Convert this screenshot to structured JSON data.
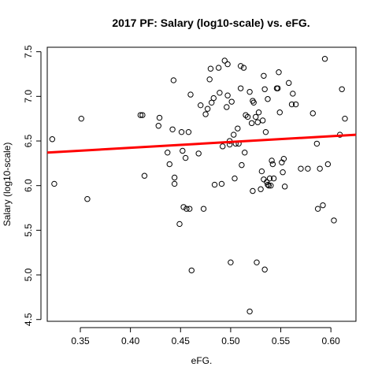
{
  "chart_data": {
    "type": "scatter",
    "title": "2017 PF: Salary (log10-scale) vs. eFG.",
    "xlabel": "eFG.",
    "ylabel": "Salary (log10-scale)",
    "xlim": [
      0.317,
      0.625
    ],
    "ylim": [
      4.48,
      7.55
    ],
    "x_ticks": [
      0.35,
      0.4,
      0.45,
      0.5,
      0.55,
      0.6
    ],
    "y_ticks": [
      4.5,
      5.0,
      5.5,
      6.0,
      6.5,
      7.0,
      7.5
    ],
    "x_tick_labels": [
      "0.35",
      "0.40",
      "0.45",
      "0.50",
      "0.55",
      "0.60"
    ],
    "y_tick_labels": [
      "4.5",
      "5.0",
      "5.5",
      "6.0",
      "6.5",
      "7.0",
      "7.5"
    ],
    "grid": false,
    "point_color": "#000000",
    "fit_line": {
      "x": [
        0.317,
        0.625
      ],
      "y": [
        6.37,
        6.57
      ],
      "color": "#ff0000"
    },
    "points": [
      {
        "x": 0.322,
        "y": 6.52
      },
      {
        "x": 0.324,
        "y": 6.02
      },
      {
        "x": 0.351,
        "y": 6.75
      },
      {
        "x": 0.357,
        "y": 5.85
      },
      {
        "x": 0.41,
        "y": 6.79
      },
      {
        "x": 0.412,
        "y": 6.79
      },
      {
        "x": 0.414,
        "y": 6.11
      },
      {
        "x": 0.428,
        "y": 6.67
      },
      {
        "x": 0.429,
        "y": 6.76
      },
      {
        "x": 0.437,
        "y": 6.37
      },
      {
        "x": 0.439,
        "y": 6.24
      },
      {
        "x": 0.442,
        "y": 6.63
      },
      {
        "x": 0.443,
        "y": 7.18
      },
      {
        "x": 0.444,
        "y": 6.09
      },
      {
        "x": 0.444,
        "y": 6.02
      },
      {
        "x": 0.449,
        "y": 5.57
      },
      {
        "x": 0.451,
        "y": 6.6
      },
      {
        "x": 0.452,
        "y": 6.39
      },
      {
        "x": 0.453,
        "y": 5.76
      },
      {
        "x": 0.455,
        "y": 6.31
      },
      {
        "x": 0.456,
        "y": 5.74
      },
      {
        "x": 0.458,
        "y": 6.6
      },
      {
        "x": 0.459,
        "y": 5.74
      },
      {
        "x": 0.46,
        "y": 7.02
      },
      {
        "x": 0.461,
        "y": 5.05
      },
      {
        "x": 0.468,
        "y": 6.36
      },
      {
        "x": 0.47,
        "y": 6.9
      },
      {
        "x": 0.473,
        "y": 5.74
      },
      {
        "x": 0.475,
        "y": 6.8
      },
      {
        "x": 0.477,
        "y": 6.86
      },
      {
        "x": 0.479,
        "y": 7.19
      },
      {
        "x": 0.48,
        "y": 7.31
      },
      {
        "x": 0.481,
        "y": 6.93
      },
      {
        "x": 0.483,
        "y": 6.98
      },
      {
        "x": 0.484,
        "y": 6.01
      },
      {
        "x": 0.488,
        "y": 7.32
      },
      {
        "x": 0.489,
        "y": 7.04
      },
      {
        "x": 0.491,
        "y": 6.02
      },
      {
        "x": 0.492,
        "y": 6.44
      },
      {
        "x": 0.494,
        "y": 7.4
      },
      {
        "x": 0.496,
        "y": 6.88
      },
      {
        "x": 0.497,
        "y": 7.01
      },
      {
        "x": 0.497,
        "y": 7.36
      },
      {
        "x": 0.499,
        "y": 6.5
      },
      {
        "x": 0.499,
        "y": 6.46
      },
      {
        "x": 0.5,
        "y": 5.14
      },
      {
        "x": 0.501,
        "y": 6.94
      },
      {
        "x": 0.503,
        "y": 6.57
      },
      {
        "x": 0.504,
        "y": 6.08
      },
      {
        "x": 0.505,
        "y": 6.47
      },
      {
        "x": 0.507,
        "y": 6.64
      },
      {
        "x": 0.508,
        "y": 6.47
      },
      {
        "x": 0.51,
        "y": 7.09
      },
      {
        "x": 0.51,
        "y": 7.34
      },
      {
        "x": 0.511,
        "y": 6.23
      },
      {
        "x": 0.513,
        "y": 7.32
      },
      {
        "x": 0.514,
        "y": 6.37
      },
      {
        "x": 0.515,
        "y": 6.79
      },
      {
        "x": 0.517,
        "y": 6.77
      },
      {
        "x": 0.519,
        "y": 7.05
      },
      {
        "x": 0.519,
        "y": 4.59
      },
      {
        "x": 0.521,
        "y": 6.7
      },
      {
        "x": 0.522,
        "y": 6.95
      },
      {
        "x": 0.522,
        "y": 5.94
      },
      {
        "x": 0.523,
        "y": 6.93
      },
      {
        "x": 0.525,
        "y": 6.77
      },
      {
        "x": 0.526,
        "y": 5.14
      },
      {
        "x": 0.527,
        "y": 6.71
      },
      {
        "x": 0.528,
        "y": 6.82
      },
      {
        "x": 0.53,
        "y": 5.96
      },
      {
        "x": 0.531,
        "y": 6.16
      },
      {
        "x": 0.532,
        "y": 6.73
      },
      {
        "x": 0.533,
        "y": 7.23
      },
      {
        "x": 0.533,
        "y": 6.07
      },
      {
        "x": 0.534,
        "y": 7.08
      },
      {
        "x": 0.534,
        "y": 5.06
      },
      {
        "x": 0.535,
        "y": 6.6
      },
      {
        "x": 0.536,
        "y": 6.04
      },
      {
        "x": 0.537,
        "y": 6.97
      },
      {
        "x": 0.537,
        "y": 6.01
      },
      {
        "x": 0.538,
        "y": 6.0
      },
      {
        "x": 0.539,
        "y": 6.08
      },
      {
        "x": 0.54,
        "y": 6.0
      },
      {
        "x": 0.541,
        "y": 6.28
      },
      {
        "x": 0.542,
        "y": 6.24
      },
      {
        "x": 0.543,
        "y": 6.08
      },
      {
        "x": 0.546,
        "y": 7.09
      },
      {
        "x": 0.547,
        "y": 7.09
      },
      {
        "x": 0.548,
        "y": 7.27
      },
      {
        "x": 0.549,
        "y": 6.82
      },
      {
        "x": 0.551,
        "y": 6.26
      },
      {
        "x": 0.552,
        "y": 6.15
      },
      {
        "x": 0.553,
        "y": 6.3
      },
      {
        "x": 0.554,
        "y": 5.99
      },
      {
        "x": 0.558,
        "y": 7.15
      },
      {
        "x": 0.561,
        "y": 6.91
      },
      {
        "x": 0.562,
        "y": 7.03
      },
      {
        "x": 0.565,
        "y": 6.91
      },
      {
        "x": 0.57,
        "y": 6.19
      },
      {
        "x": 0.577,
        "y": 6.19
      },
      {
        "x": 0.582,
        "y": 6.81
      },
      {
        "x": 0.586,
        "y": 6.47
      },
      {
        "x": 0.587,
        "y": 5.74
      },
      {
        "x": 0.589,
        "y": 6.19
      },
      {
        "x": 0.592,
        "y": 5.78
      },
      {
        "x": 0.594,
        "y": 7.42
      },
      {
        "x": 0.597,
        "y": 6.24
      },
      {
        "x": 0.603,
        "y": 5.61
      },
      {
        "x": 0.609,
        "y": 6.57
      },
      {
        "x": 0.611,
        "y": 7.08
      },
      {
        "x": 0.614,
        "y": 6.75
      }
    ]
  }
}
